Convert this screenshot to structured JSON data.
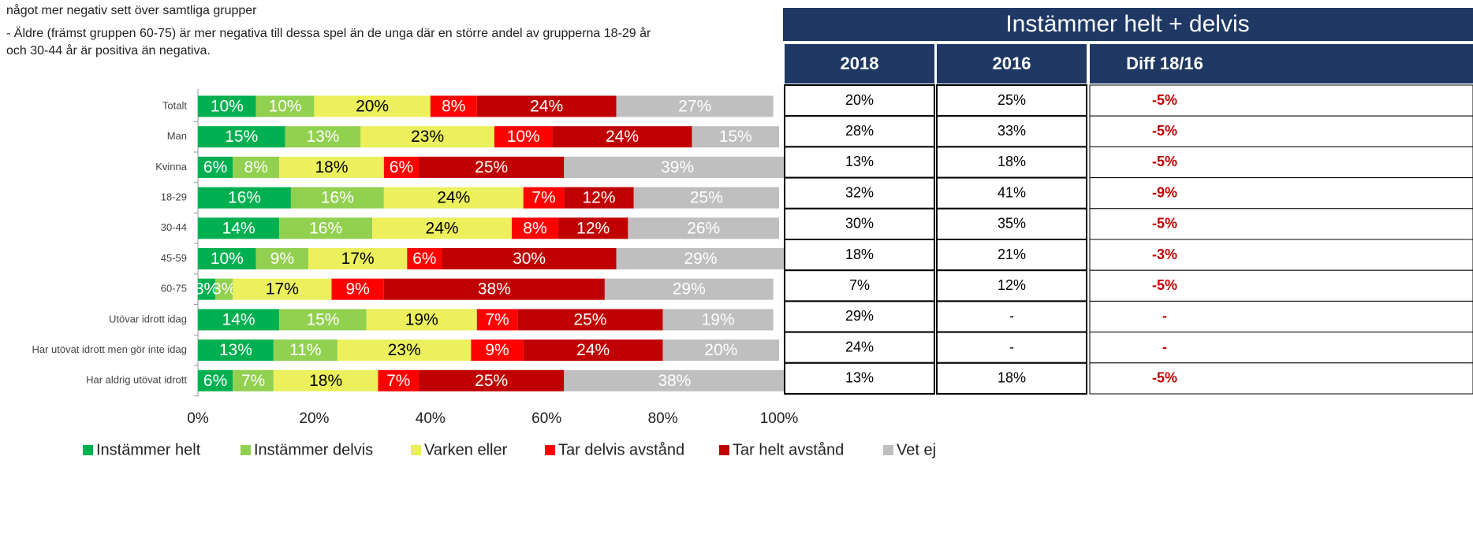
{
  "notes": [
    "något mer negativ sett över samtliga grupper",
    "-    Äldre (främst gruppen 60-75) är mer negativa till dessa spel än de unga där en större andel av grupperna 18-29 år",
    "och 30-44 år är positiva än negativa."
  ],
  "chart_data": {
    "type": "stacked_bar_horizontal",
    "categories": [
      "Totalt",
      "Man",
      "Kvinna",
      "18-29",
      "30-44",
      "45-59",
      "60-75",
      "Utövar idrott idag",
      "Har utövat idrott men gör inte idag",
      "Har aldrig utövat idrott"
    ],
    "series": [
      {
        "name": "Instämmer helt",
        "color": "#00b050",
        "values": [
          10,
          15,
          6,
          16,
          14,
          10,
          3,
          14,
          13,
          6
        ],
        "value_labels": [
          "10%",
          "15%",
          "6%",
          "16%",
          "14%",
          "10%",
          "3%",
          "14%",
          "13%",
          "6%"
        ]
      },
      {
        "name": "Instämmer delvis",
        "color": "#92d050",
        "values": [
          10,
          13,
          8,
          16,
          16,
          9,
          3,
          15,
          11,
          7
        ],
        "value_labels": [
          "10%",
          "13%",
          "8%",
          "16%",
          "16%",
          "9%",
          "3%",
          "15%",
          "11%",
          "7%"
        ]
      },
      {
        "name": "Varken eller",
        "color": "#ebf05c",
        "values": [
          20,
          23,
          18,
          24,
          24,
          17,
          17,
          19,
          23,
          18
        ],
        "value_labels": [
          "20%",
          "23%",
          "18%",
          "24%",
          "24%",
          "17%",
          "17%",
          "19%",
          "23%",
          "18%"
        ]
      },
      {
        "name": "Tar delvis avstånd",
        "color": "#ff0000",
        "values": [
          8,
          10,
          6,
          7,
          8,
          6,
          9,
          7,
          9,
          7
        ],
        "value_labels": [
          "8%",
          "10%",
          "6%",
          "7%",
          "8%",
          "6%",
          "9%",
          "7%",
          "9%",
          "7%"
        ]
      },
      {
        "name": "Tar helt avstånd",
        "color": "#c00000",
        "values": [
          24,
          24,
          25,
          12,
          12,
          30,
          38,
          25,
          24,
          25
        ],
        "value_labels": [
          "24%",
          "24%",
          "25%",
          "12%",
          "12%",
          "30%",
          "38%",
          "25%",
          "24%",
          "25%"
        ]
      },
      {
        "name": "Vet ej",
        "color": "#bfbfbf",
        "values": [
          27,
          15,
          39,
          25,
          26,
          29,
          29,
          19,
          20,
          38
        ],
        "value_labels": [
          "27%",
          "15%",
          "39%",
          "25%",
          "26%",
          "29%",
          "29%",
          "19%",
          "20%",
          "38%"
        ]
      }
    ],
    "xlim": [
      0,
      100
    ],
    "xticks": [
      {
        "value": 0,
        "label": "0%"
      },
      {
        "value": 20,
        "label": "20%"
      },
      {
        "value": 40,
        "label": "40%"
      },
      {
        "value": 60,
        "label": "60%"
      },
      {
        "value": 80,
        "label": "80%"
      },
      {
        "value": 100,
        "label": "100%"
      }
    ],
    "legend": "bottom"
  },
  "table": {
    "title": "Instämmer helt + delvis",
    "header": [
      "2018",
      "2016",
      "Diff 18/16"
    ],
    "rows": [
      [
        "20%",
        "25%",
        "-5%"
      ],
      [
        "28%",
        "33%",
        "-5%"
      ],
      [
        "13%",
        "18%",
        "-5%"
      ],
      [
        "32%",
        "41%",
        "-9%"
      ],
      [
        "30%",
        "35%",
        "-5%"
      ],
      [
        "18%",
        "21%",
        "-3%"
      ],
      [
        "7%",
        "12%",
        "-5%"
      ],
      [
        "29%",
        "-",
        "-"
      ],
      [
        "24%",
        "-",
        "-"
      ],
      [
        "13%",
        "18%",
        "-5%"
      ]
    ]
  }
}
